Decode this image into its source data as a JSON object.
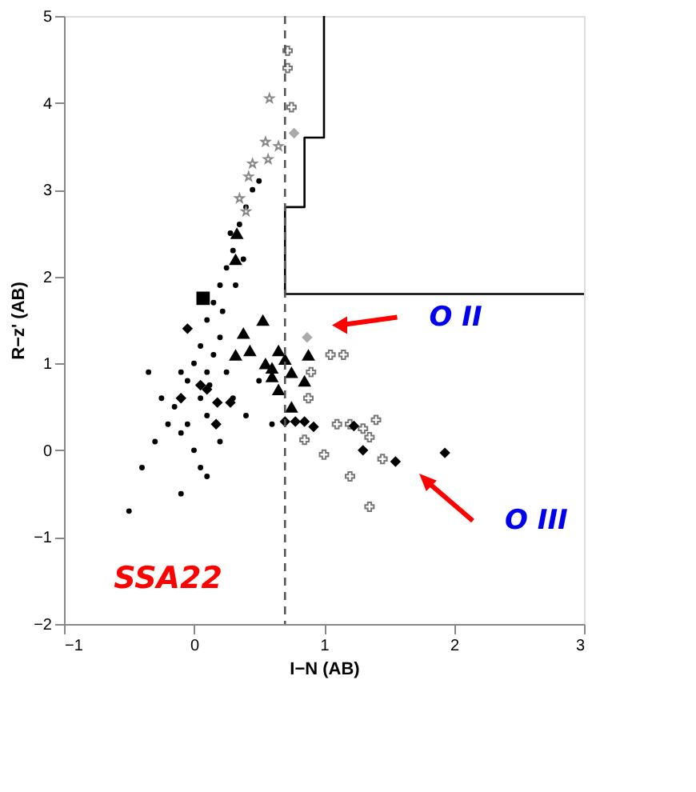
{
  "chart_data": {
    "type": "scatter",
    "xlabel": "I−N (AB)",
    "ylabel": "R−z' (AB)",
    "xlim": [
      -1,
      3
    ],
    "ylim": [
      -2,
      5
    ],
    "xticks": [
      -1,
      0,
      1,
      2,
      3
    ],
    "yticks": [
      -2,
      -1,
      0,
      1,
      2,
      3,
      4,
      5
    ],
    "grid": false,
    "ref_lines": [
      {
        "axis": "x",
        "value": 0.7,
        "color": "#555555",
        "line_style": "dashed"
      }
    ],
    "annotations": [
      {
        "text": "O II",
        "x": 1.12,
        "y": 1.44
      },
      {
        "text": "O III",
        "x": 1.8,
        "y": -0.37
      },
      "SSA22"
    ],
    "series": [
      {
        "marker": "circle",
        "color": "#000000",
        "x": [
          -0.1,
          0,
          0.05,
          -0.15,
          0.1,
          -0.05,
          0,
          0.05,
          0.1,
          0.15,
          0.2,
          0.25,
          0.3,
          0.35,
          0.4,
          0.1,
          -0.1,
          0.15,
          0.2,
          -0.2,
          -0.25,
          0.25,
          0.3,
          -0.3,
          0.2,
          0.1,
          -0.1,
          0.4,
          0.5,
          -0.4,
          0.05,
          -0.05,
          0.12,
          0.22,
          0.32,
          0.28,
          0.38,
          -0.35,
          0.6,
          -0.5,
          0.45,
          0.5
        ],
        "values": [
          0.2,
          0,
          -0.2,
          0.5,
          0.4,
          0.8,
          1.0,
          1.2,
          1.5,
          1.7,
          1.9,
          2.1,
          2.3,
          2.6,
          2.8,
          0.9,
          0.9,
          1.1,
          1.3,
          0.3,
          0.6,
          0.9,
          0.6,
          0.1,
          0.1,
          -0.3,
          -0.5,
          0.4,
          0.8,
          -0.2,
          0.6,
          0.3,
          0.75,
          1.6,
          1.9,
          2.5,
          2.2,
          0.9,
          0.3,
          -0.7,
          3.0,
          3.1
        ]
      },
      {
        "marker": "star",
        "color": "#888888",
        "x": [
          0.58,
          0.55,
          0.65,
          0.57,
          0.45,
          0.42,
          0.35,
          0.4
        ],
        "values": [
          4.05,
          3.55,
          3.5,
          3.35,
          3.3,
          3.15,
          2.9,
          2.75
        ]
      },
      {
        "marker": "cross",
        "color": "#777777",
        "x": [
          0.72,
          0.72,
          0.75,
          1.05,
          1.15,
          0.9,
          0.88,
          1.1,
          1.2,
          1.4,
          1.35,
          1.0,
          1.2,
          1.45,
          1.35,
          0.85,
          1.3
        ],
        "values": [
          4.6,
          4.4,
          3.95,
          1.1,
          1.1,
          0.9,
          0.6,
          0.3,
          0.3,
          0.35,
          0.15,
          -0.05,
          -0.3,
          -0.1,
          -0.65,
          0.12,
          0.25
        ]
      },
      {
        "marker": "diamond",
        "color": "#aaaaaa",
        "x": [
          0.77,
          0.87
        ],
        "values": [
          3.65,
          1.3
        ]
      },
      {
        "marker": "triangle",
        "color": "#000000",
        "x": [
          0.53,
          0.38,
          0.32,
          0.43,
          0.65,
          0.55,
          0.6,
          0.7,
          0.65,
          0.88,
          0.85,
          0.75,
          0.75,
          0.6,
          0.32,
          0.33
        ],
        "values": [
          1.5,
          1.35,
          1.1,
          1.15,
          1.15,
          1.0,
          0.85,
          1.05,
          0.7,
          1.1,
          0.8,
          0.9,
          0.5,
          0.95,
          2.2,
          2.5
        ]
      },
      {
        "marker": "diamond",
        "color": "#000000",
        "x": [
          0.17,
          0.18,
          0.28,
          0.7,
          0.78,
          0.85,
          0.92,
          1.23,
          1.3,
          1.55,
          1.93,
          0.05,
          0.1,
          -0.05,
          -0.1
        ],
        "values": [
          0.3,
          0.55,
          0.55,
          0.33,
          0.33,
          0.33,
          0.27,
          0.28,
          0,
          -0.13,
          -0.03,
          0.75,
          0.7,
          1.4,
          0.6
        ]
      },
      {
        "marker": "square",
        "color": "#000000",
        "x": [
          0.07
        ],
        "values": [
          1.75
        ]
      },
      {
        "type": "line",
        "marker": "none",
        "color": "#000000",
        "x": [
          0.7,
          0.7,
          0.85,
          0.85,
          1.0,
          1.0
        ],
        "values": [
          1.8,
          2.8,
          2.8,
          3.6,
          3.6,
          5
        ]
      },
      {
        "type": "line",
        "marker": "none",
        "color": "#000000",
        "x": [
          0.7,
          3
        ],
        "values": [
          1.8,
          1.8
        ]
      }
    ]
  }
}
